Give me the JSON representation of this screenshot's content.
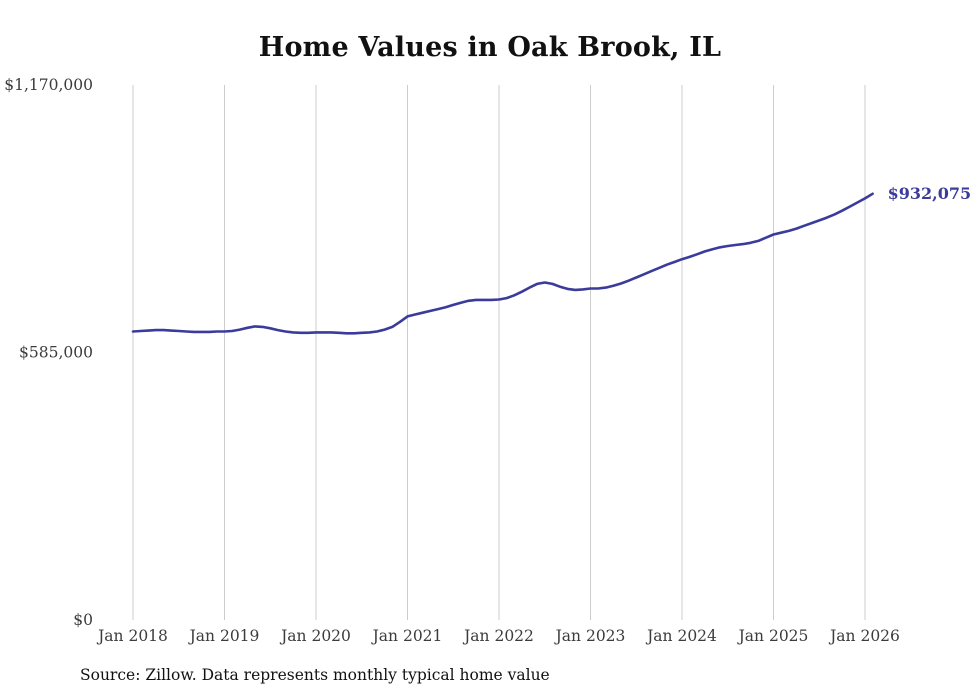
{
  "page": {
    "title": "Home Values in Oak Brook, IL",
    "source_note": "Source: Zillow. Data represents monthly typical home value"
  },
  "chart_data": {
    "type": "line",
    "title": "Home Values in Oak Brook, IL",
    "series_name": "Typical home value (monthly)",
    "line_color": "#3b3b9b",
    "grid_color": "#cccccc",
    "grid": "vertical-only",
    "legend": "none",
    "end_label": "$932,075",
    "end_value": 932075,
    "y_axis": {
      "min": 0,
      "max": 1170000,
      "ticks": [
        {
          "value": 1170000,
          "label": "$1,170,000"
        },
        {
          "value": 585000,
          "label": "$585,000"
        },
        {
          "value": 0,
          "label": "$0"
        }
      ]
    },
    "x_axis": {
      "ticks": [
        {
          "label": "Jan 2018",
          "month_index": 0
        },
        {
          "label": "Jan 2019",
          "month_index": 12
        },
        {
          "label": "Jan 2020",
          "month_index": 24
        },
        {
          "label": "Jan 2021",
          "month_index": 36
        },
        {
          "label": "Jan 2022",
          "month_index": 48
        },
        {
          "label": "Jan 2023",
          "month_index": 60
        },
        {
          "label": "Jan 2024",
          "month_index": 72
        },
        {
          "label": "Jan 2025",
          "month_index": 84
        },
        {
          "label": "Jan 2026",
          "month_index": 96
        }
      ]
    },
    "x": [
      "2018-01",
      "2018-02",
      "2018-03",
      "2018-04",
      "2018-05",
      "2018-06",
      "2018-07",
      "2018-08",
      "2018-09",
      "2018-10",
      "2018-11",
      "2018-12",
      "2019-01",
      "2019-02",
      "2019-03",
      "2019-04",
      "2019-05",
      "2019-06",
      "2019-07",
      "2019-08",
      "2019-09",
      "2019-10",
      "2019-11",
      "2019-12",
      "2020-01",
      "2020-02",
      "2020-03",
      "2020-04",
      "2020-05",
      "2020-06",
      "2020-07",
      "2020-08",
      "2020-09",
      "2020-10",
      "2020-11",
      "2020-12",
      "2021-01",
      "2021-02",
      "2021-03",
      "2021-04",
      "2021-05",
      "2021-06",
      "2021-07",
      "2021-08",
      "2021-09",
      "2021-10",
      "2021-11",
      "2021-12",
      "2022-01",
      "2022-02",
      "2022-03",
      "2022-04",
      "2022-05",
      "2022-06",
      "2022-07",
      "2022-08",
      "2022-09",
      "2022-10",
      "2022-11",
      "2022-12",
      "2023-01",
      "2023-02",
      "2023-03",
      "2023-04",
      "2023-05",
      "2023-06",
      "2023-07",
      "2023-08",
      "2023-09",
      "2023-10",
      "2023-11",
      "2023-12",
      "2024-01",
      "2024-02",
      "2024-03",
      "2024-04",
      "2024-05",
      "2024-06",
      "2024-07",
      "2024-08",
      "2024-09",
      "2024-10",
      "2024-11",
      "2024-12",
      "2025-01",
      "2025-02",
      "2025-03",
      "2025-04",
      "2025-05",
      "2025-06",
      "2025-07",
      "2025-08",
      "2025-09",
      "2025-10",
      "2025-11",
      "2025-12",
      "2026-01",
      "2026-02"
    ],
    "values": [
      631000,
      632000,
      633000,
      634000,
      634000,
      633000,
      632000,
      631000,
      630000,
      630000,
      630000,
      631000,
      631000,
      632000,
      635000,
      639000,
      642000,
      641000,
      638000,
      634000,
      631000,
      629000,
      628000,
      628000,
      629000,
      629000,
      629000,
      628000,
      627000,
      627000,
      628000,
      629000,
      631000,
      635000,
      641000,
      652000,
      664000,
      668000,
      672000,
      676000,
      680000,
      684000,
      689000,
      694000,
      698000,
      700000,
      700000,
      700000,
      701000,
      704000,
      710000,
      718000,
      727000,
      735000,
      738000,
      735000,
      729000,
      724000,
      722000,
      723000,
      725000,
      725000,
      727000,
      731000,
      736000,
      742000,
      749000,
      756000,
      763000,
      770000,
      777000,
      783000,
      789000,
      794000,
      800000,
      806000,
      811000,
      815000,
      818000,
      820000,
      822000,
      825000,
      829000,
      836000,
      843000,
      847000,
      851000,
      856000,
      862000,
      868000,
      874000,
      880000,
      887000,
      895000,
      904000,
      913000,
      922000,
      932075
    ]
  }
}
